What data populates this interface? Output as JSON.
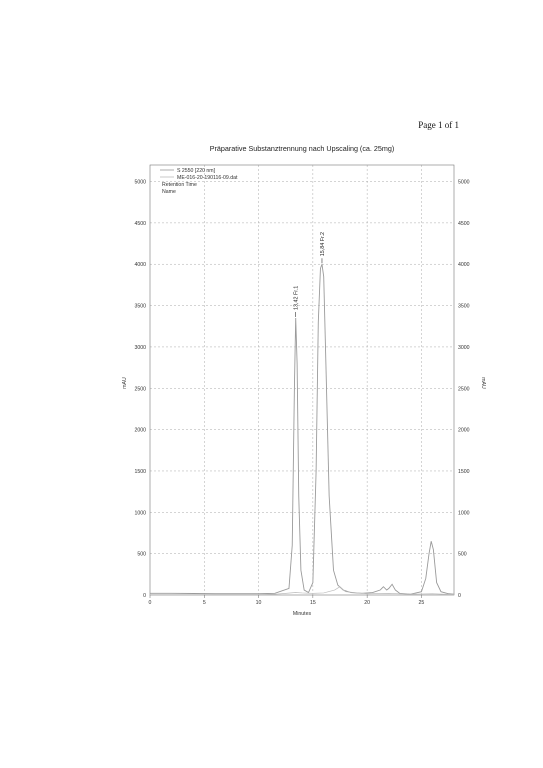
{
  "page": {
    "label": "Page 1 of 1"
  },
  "chart_data": {
    "type": "line",
    "title": "Präparative Substanztrennung nach Upscaling (ca. 25mg)",
    "xlabel": "Minutes",
    "ylabel_left": "mAU",
    "ylabel_right": "mAU",
    "xlim": [
      0,
      28
    ],
    "ylim": [
      0,
      5200
    ],
    "xticks": [
      0,
      5,
      10,
      15,
      20,
      25
    ],
    "yticks": [
      0,
      500,
      1000,
      1500,
      2000,
      2500,
      3000,
      3500,
      4000,
      4500,
      5000
    ],
    "grid": true,
    "legend": {
      "position": "top-left",
      "entries": [
        "S 2550 [220 nm]",
        "ME-016-20-190116-09.dat"
      ],
      "extra_lines": [
        "Retention Time",
        "Name"
      ]
    },
    "peak_labels": [
      {
        "x": 13.42,
        "y": 3350,
        "text": "13,42  Fr.1"
      },
      {
        "x": 15.84,
        "y": 4000,
        "text": "15,84  Fr.2"
      }
    ],
    "series": [
      {
        "color": "#9a9a9a",
        "x": [
          0,
          2,
          4,
          6,
          8,
          10,
          11.5,
          12.8,
          13.1,
          13.3,
          13.42,
          13.55,
          13.7,
          13.9,
          14.2,
          14.6,
          15.0,
          15.3,
          15.5,
          15.7,
          15.84,
          16.0,
          16.2,
          16.5,
          16.9,
          17.3,
          17.8,
          18.5,
          19.5,
          20.5,
          21.2,
          21.5,
          21.8,
          22.0,
          22.3,
          22.6,
          23.0,
          24.0,
          25.0,
          25.4,
          25.7,
          25.9,
          26.1,
          26.4,
          26.8,
          27.5,
          28
        ],
        "y": [
          20,
          20,
          18,
          15,
          15,
          15,
          20,
          80,
          600,
          2500,
          3350,
          2800,
          1200,
          300,
          60,
          30,
          150,
          1500,
          3300,
          3950,
          4000,
          3850,
          2800,
          1200,
          300,
          120,
          60,
          30,
          20,
          30,
          60,
          100,
          60,
          80,
          130,
          60,
          20,
          10,
          40,
          200,
          500,
          650,
          550,
          150,
          40,
          15,
          10
        ]
      },
      {
        "color": "#bdbdbd",
        "x": [
          0,
          4,
          8,
          10,
          11.5,
          12.5,
          13.4,
          14,
          15,
          16,
          17,
          17.5,
          18,
          20,
          22,
          24,
          26,
          28
        ],
        "y": [
          5,
          5,
          5,
          5,
          10,
          20,
          30,
          25,
          20,
          25,
          60,
          100,
          40,
          15,
          20,
          10,
          15,
          5
        ]
      }
    ]
  }
}
